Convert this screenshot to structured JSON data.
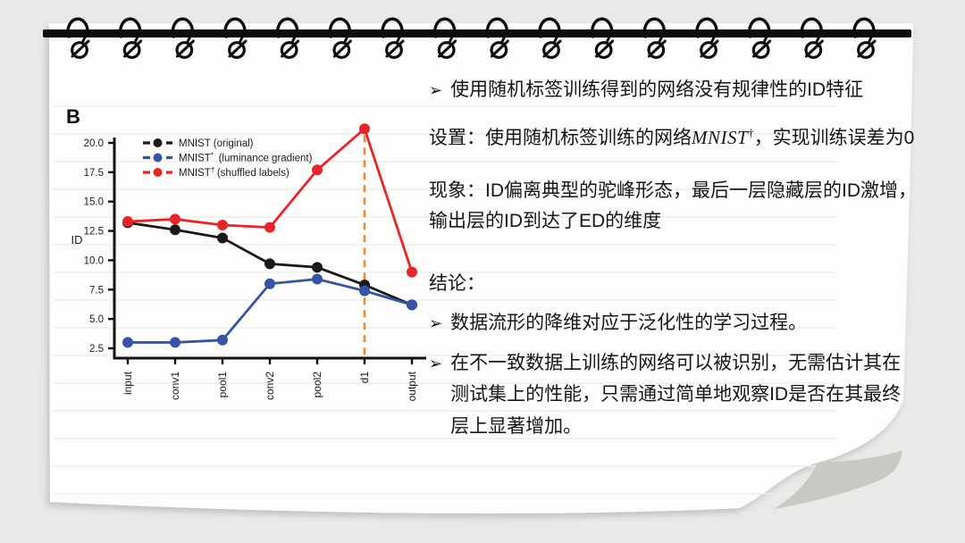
{
  "page": {
    "panel_label": "B",
    "binding": {
      "ring_count": 16
    }
  },
  "colors": {
    "background": "#e9e9e8",
    "paper": "#fdfdfc",
    "ruled_line": "#ededeb",
    "binding_black": "#0d0d0d",
    "curl_fold": "#c8c8c5",
    "series_black": "#1a1a1a",
    "series_blue": "#3953a4",
    "series_red": "#e8242b",
    "highlight_orange": "#ee8531",
    "axis": "#111111",
    "text": "#161616"
  },
  "chart_data": {
    "type": "line",
    "title": "",
    "xlabel": "",
    "ylabel": "ID",
    "categories": [
      "input",
      "conv1",
      "pool1",
      "conv2",
      "pool2",
      "d1",
      "output"
    ],
    "y_ticks": [
      2.5,
      5.0,
      7.5,
      10.0,
      12.5,
      15.0,
      17.5,
      20.0
    ],
    "ylim": [
      2.5,
      21.5
    ],
    "grid": false,
    "legend_position": "top-left",
    "marker_style": "dash-dot-dash",
    "highlight": {
      "category": "d1",
      "style": "dashed-vertical",
      "color": "#ee8531"
    },
    "series": [
      {
        "label": "MNIST (original)",
        "base": "MNIST",
        "sup": "",
        "rest": " (original)",
        "color": "#1a1a1a",
        "values": [
          13.2,
          12.6,
          11.9,
          9.7,
          9.4,
          7.9,
          6.2
        ]
      },
      {
        "label": "MNIST* (luminance gradient)",
        "base": "MNIST",
        "sup": "*",
        "rest": " (luminance gradient)",
        "color": "#3953a4",
        "values": [
          3.0,
          3.0,
          3.2,
          8.0,
          8.4,
          7.4,
          6.2
        ]
      },
      {
        "label": "MNIST† (shuffled labels)",
        "base": "MNIST",
        "sup": "†",
        "rest": "(shuffled labels)",
        "color": "#e8242b",
        "values": [
          13.3,
          13.5,
          13.0,
          12.8,
          17.7,
          21.2,
          9.0
        ]
      }
    ]
  },
  "notes": {
    "bullet_marker": "➢",
    "top_bullet": "使用随机标签训练得到的网络没有规律性的ID特征",
    "setup_prefix": "设置：使用随机标签训练的网络",
    "setup_math_base": "MNIST",
    "setup_math_sup": "†",
    "setup_suffix": "，实现训练误差为0",
    "phenomenon": "现象：ID偏离典型的驼峰形态，最后一层隐藏层的ID激增，输出层的ID到达了ED的维度",
    "conclusion_title": "结论：",
    "conclusion_bullets": [
      "数据流形的降维对应于泛化性的学习过程。",
      "在不一致数据上训练的网络可以被识别，无需估计其在测试集上的性能，只需通过简单地观察ID是否在其最终层上显著增加。"
    ]
  }
}
